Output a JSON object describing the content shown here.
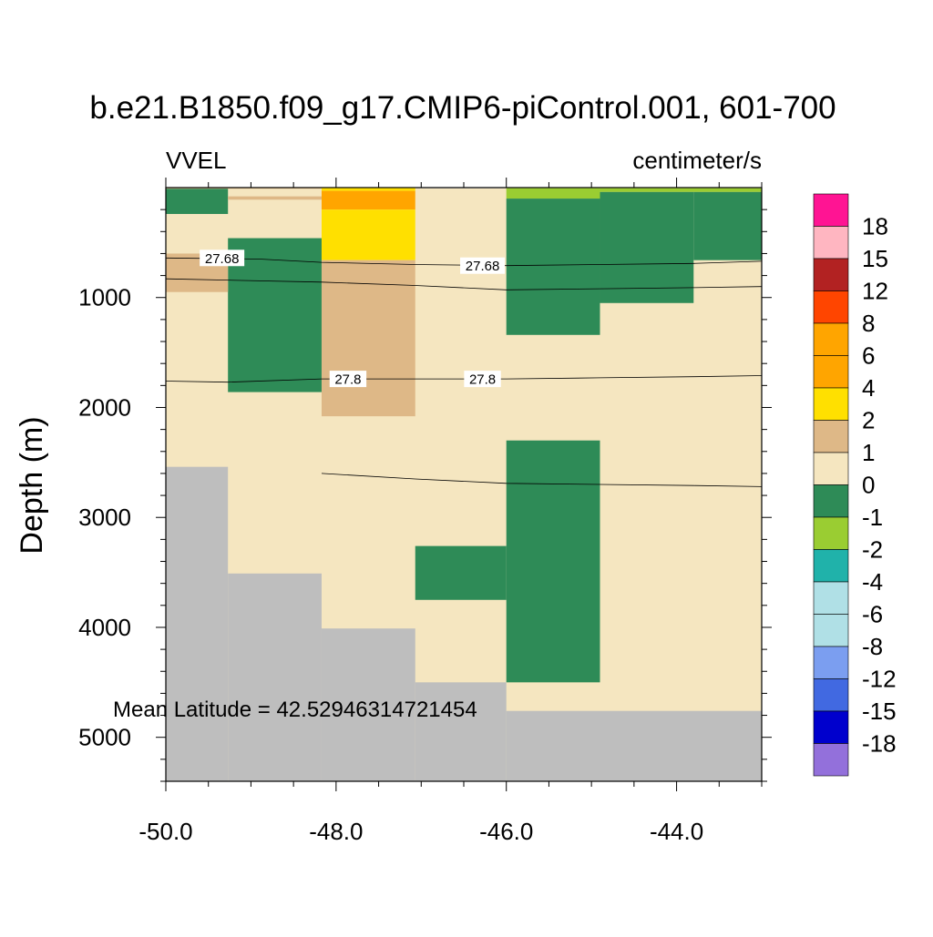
{
  "chart_data": {
    "type": "heatmap",
    "subtype": "ocean-section-filled-contour",
    "title": "b.e21.B1850.f09_g17.CMIP6-piControl.001, 601-700",
    "left_label": "VVEL",
    "right_label": "centimeter/s",
    "xlabel": "",
    "ylabel": "Depth (m)",
    "xlim": [
      -50.0,
      -43.0
    ],
    "ylim": [
      0,
      5400
    ],
    "y_reversed": true,
    "x_ticks": [
      -50.0,
      -48.0,
      -46.0,
      -44.0
    ],
    "x_tick_labels": [
      "-50.0",
      "-48.0",
      "-46.0",
      "-44.0"
    ],
    "y_ticks": [
      1000,
      2000,
      3000,
      4000,
      5000
    ],
    "y_tick_labels": [
      "1000",
      "2000",
      "3000",
      "4000",
      "5000"
    ],
    "annotation": "Mean Latitude = 42.52946314721454",
    "colorbar": {
      "labels": [
        "18",
        "15",
        "12",
        "8",
        "6",
        "4",
        "2",
        "1",
        "0",
        "-1",
        "-2",
        "-4",
        "-6",
        "-8",
        "-12",
        "-15",
        "-18"
      ],
      "colors": [
        "#ff1493",
        "#ffb6c1",
        "#b22222",
        "#ff4500",
        "#ffa500",
        "#ffa500",
        "#ffe000",
        "#deb887",
        "#f5e6c0",
        "#2e8b57",
        "#9acd32",
        "#20b2aa",
        "#b0e0e6",
        "#b0e0e6",
        "#7b9ef0",
        "#4169e1",
        "#0000cd",
        "#9370db"
      ]
    },
    "colors": {
      "background": "#f5e6c0",
      "missing": "#bebebe",
      "level_0_1": "#f5e6c0",
      "level_1_2": "#deb887",
      "level_2_4": "#ffe000",
      "level_4_6": "#ffa500",
      "level_m1_0": "#2e8b57",
      "level_m2_m1": "#9acd32",
      "level_m15_m12": "#4169e1"
    },
    "cells": [
      {
        "x": [
          -50.0,
          -49.27
        ],
        "y": [
          10,
          240
        ],
        "level": "level_m1_0"
      },
      {
        "x": [
          -49.27,
          -48.17
        ],
        "y": [
          80,
          110
        ],
        "level": "level_1_2"
      },
      {
        "x": [
          -50.0,
          -48.17
        ],
        "y": [
          0,
          10
        ],
        "level": "level_1_2"
      },
      {
        "x": [
          -49.27,
          -48.17
        ],
        "y": [
          460,
          1860
        ],
        "level": "level_m1_0"
      },
      {
        "x": [
          -50.0,
          -49.27
        ],
        "y": [
          600,
          950
        ],
        "level": "level_1_2"
      },
      {
        "x": [
          -48.17,
          -47.07
        ],
        "y": [
          0,
          30
        ],
        "level": "level_2_4"
      },
      {
        "x": [
          -48.17,
          -47.07
        ],
        "y": [
          30,
          200
        ],
        "level": "level_4_6"
      },
      {
        "x": [
          -48.17,
          -47.07
        ],
        "y": [
          200,
          660
        ],
        "level": "level_2_4"
      },
      {
        "x": [
          -48.17,
          -47.07
        ],
        "y": [
          660,
          2080
        ],
        "level": "level_1_2"
      },
      {
        "x": [
          -47.07,
          -43.0
        ],
        "y": [
          -5,
          5
        ],
        "level": "level_m15_m12"
      },
      {
        "x": [
          -46.0,
          -44.9
        ],
        "y": [
          5,
          100
        ],
        "level": "level_m2_m1"
      },
      {
        "x": [
          -44.9,
          -43.0
        ],
        "y": [
          5,
          40
        ],
        "level": "level_m2_m1"
      },
      {
        "x": [
          -46.0,
          -44.9
        ],
        "y": [
          100,
          1340
        ],
        "level": "level_m1_0"
      },
      {
        "x": [
          -44.9,
          -43.8
        ],
        "y": [
          40,
          1050
        ],
        "level": "level_m1_0"
      },
      {
        "x": [
          -43.8,
          -43.0
        ],
        "y": [
          40,
          660
        ],
        "level": "level_m1_0"
      },
      {
        "x": [
          -46.0,
          -44.9
        ],
        "y": [
          2300,
          4500
        ],
        "level": "level_m1_0"
      },
      {
        "x": [
          -47.07,
          -46.0
        ],
        "y": [
          3260,
          3750
        ],
        "level": "level_m1_0"
      }
    ],
    "bathymetry": [
      {
        "x": [
          -50.0,
          -49.27
        ],
        "depth": 2540
      },
      {
        "x": [
          -49.27,
          -48.17
        ],
        "depth": 3510
      },
      {
        "x": [
          -48.17,
          -47.07
        ],
        "depth": 4010
      },
      {
        "x": [
          -47.07,
          -46.0
        ],
        "depth": 4500
      },
      {
        "x": [
          -46.0,
          -43.0
        ],
        "depth": 4760
      }
    ],
    "isolines": [
      {
        "value": 27.68,
        "points": [
          [
            -50.0,
            640
          ],
          [
            -48.9,
            650
          ],
          [
            -48.17,
            680
          ],
          [
            -47.07,
            700
          ],
          [
            -46.0,
            710
          ],
          [
            -44.9,
            700
          ],
          [
            -43.8,
            690
          ],
          [
            -43.0,
            670
          ]
        ]
      },
      {
        "value": null,
        "points": [
          [
            -50.0,
            830
          ],
          [
            -48.17,
            860
          ],
          [
            -47.07,
            890
          ],
          [
            -46.0,
            930
          ],
          [
            -44.9,
            920
          ],
          [
            -43.8,
            910
          ],
          [
            -43.0,
            900
          ]
        ]
      },
      {
        "value": 27.8,
        "points": [
          [
            -50.0,
            1760
          ],
          [
            -49.27,
            1770
          ],
          [
            -48.17,
            1740
          ],
          [
            -47.07,
            1740
          ],
          [
            -46.0,
            1740
          ],
          [
            -44.9,
            1730
          ],
          [
            -43.8,
            1720
          ],
          [
            -43.0,
            1710
          ]
        ]
      },
      {
        "value": null,
        "points": [
          [
            -48.17,
            2600
          ],
          [
            -47.07,
            2650
          ],
          [
            -46.0,
            2690
          ],
          [
            -44.9,
            2700
          ],
          [
            -43.8,
            2710
          ],
          [
            -43.0,
            2720
          ]
        ]
      }
    ],
    "isoline_labels": [
      {
        "text": "27.68",
        "x": -49.34,
        "y": 640
      },
      {
        "text": "27.68",
        "x": -46.28,
        "y": 710
      },
      {
        "text": "27.8",
        "x": -47.86,
        "y": 1740
      },
      {
        "text": "27.8",
        "x": -46.28,
        "y": 1740
      }
    ]
  }
}
